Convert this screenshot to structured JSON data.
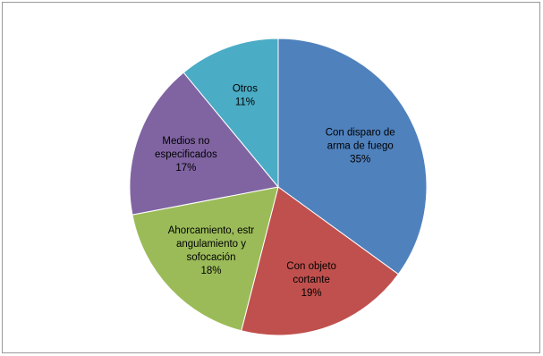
{
  "chart_data": {
    "type": "pie",
    "title": "",
    "slices": [
      {
        "label": [
          "Con disparo de",
          "arma de fuego"
        ],
        "percent_label": "35%",
        "value": 35,
        "color": "#4F81BD"
      },
      {
        "label": [
          "Con objeto",
          "cortante"
        ],
        "percent_label": "19%",
        "value": 19,
        "color": "#C0504D"
      },
      {
        "label": [
          "Ahorcamiento, estr",
          "angulamiento y",
          "sofocación"
        ],
        "percent_label": "18%",
        "value": 18,
        "color": "#9BBB59"
      },
      {
        "label": [
          "Medios no",
          "especificados"
        ],
        "percent_label": "17%",
        "value": 17,
        "color": "#8064A2"
      },
      {
        "label": [
          "Otros"
        ],
        "percent_label": "11%",
        "value": 11,
        "color": "#4BACC6"
      }
    ],
    "start_angle": "top",
    "direction": "clockwise",
    "legend": "none",
    "data_labels": "inside"
  }
}
